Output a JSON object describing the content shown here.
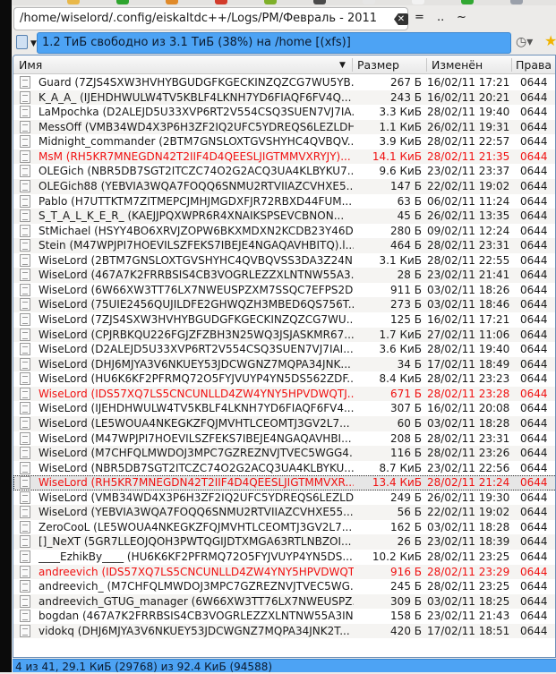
{
  "toolbar": {
    "icon_colors": [
      "#e9b84a",
      "#2fa52f",
      "#e08a2a",
      "#d23b2b",
      "#7fb02a",
      "#4a4a4a",
      "#e6e6e6",
      "#f2f2f2",
      "#32a832",
      "#9aa0aa"
    ]
  },
  "path": {
    "value": "/home/wiselord/.config/eiskaltdc++/Logs/PM/Февраль - 2011",
    "root_btn": "=",
    "up_btn": "..",
    "home_btn": "~"
  },
  "free_space": {
    "text": "1.2 ТиБ свободно из 3.1 ТиБ (38%) на /home [(xfs)]"
  },
  "columns": {
    "name": "Имя",
    "size": "Размер",
    "modified": "Изменён",
    "perms": "Права"
  },
  "colors": {
    "highlight": "#f01010",
    "accent": "#4da3f4"
  },
  "rows": [
    {
      "name": "Guard (7ZJS4SXW3HVHYBGUDGFKGECKINZQZCG7WU5YB...",
      "size": "267 Б",
      "date": "16/02/11 17:21",
      "perms": "0644"
    },
    {
      "name": "K_A_A_ (IJEHDHWULW4TV5KBLF4LKNH7YD6FIAQF6FV4Q...",
      "size": "243 Б",
      "date": "16/02/11 20:21",
      "perms": "0644"
    },
    {
      "name": "LaMpochka (D2ALEJD5U33XVP6RT2V554CSQ3SUEN7VJ7IA...",
      "size": "3.3 КиБ",
      "date": "28/02/11 19:40",
      "perms": "0644"
    },
    {
      "name": "MessOff (VMB34WD4X3P6H3ZF2IQ2UFC5YDREQS6LEZLDH...",
      "size": "1.1 КиБ",
      "date": "26/02/11 19:31",
      "perms": "0644"
    },
    {
      "name": "Midnight_commander (2BTM7GNSLOXTGVSHYHC4QVBQV...",
      "size": "3.9 КиБ",
      "date": "28/02/11 22:57",
      "perms": "0644"
    },
    {
      "name": "MsM (RH5KR7MNEGDN42T2IIF4D4QEESLJIGTMMVXRYJY)...",
      "size": "14.1 КиБ",
      "date": "28/02/11 21:35",
      "perms": "0644",
      "red": true
    },
    {
      "name": "OLEGich (NBR5DB7SGT2ITCZC74O2G2ACQ3UA4KLBYKU7...",
      "size": "9.6 КиБ",
      "date": "23/02/11 23:37",
      "perms": "0644"
    },
    {
      "name": "OLEGich88 (YEBVIA3WQA7FOQQ6SNMU2RTVIIAZCVHXE5...",
      "size": "147 Б",
      "date": "22/02/11 19:02",
      "perms": "0644"
    },
    {
      "name": "Pablo (H7UTTKTM7ZITMEPCJMHJMGDXFJR72RBXD44FUM...",
      "size": "63 Б",
      "date": "06/02/11 11:24",
      "perms": "0644"
    },
    {
      "name": "S_T_A_L_K_E_R_ (KAEJJPQXWPR6R4XNAIKSPSEVCBNON...",
      "size": "45 Б",
      "date": "26/02/11 13:35",
      "perms": "0644"
    },
    {
      "name": "StMichael (HSYY4BO6XRVJZOPW6BKXMDXN2KCDB23Y46D...",
      "size": "280 Б",
      "date": "09/02/11 12:24",
      "perms": "0644"
    },
    {
      "name": "Stein (M47WPJPI7HOEVILSZFEKS7IBEJE4NGAQAVHBITQ).l...",
      "size": "464 Б",
      "date": "28/02/11 23:31",
      "perms": "0644"
    },
    {
      "name": "WiseLord (2BTM7GNSLOXTGVSHYHC4QVBQVSS3DA3Z24N...",
      "size": "3.1 КиБ",
      "date": "28/02/11 22:55",
      "perms": "0644"
    },
    {
      "name": "WiseLord (467A7K2FRRBSIS4CB3VOGRLEZZXLNTNW55A3...",
      "size": "28 Б",
      "date": "23/02/11 21:41",
      "perms": "0644"
    },
    {
      "name": "WiseLord (6W66XW3TT76LX7NWEUSPZXM7SSQC7EFPS2D...",
      "size": "911 Б",
      "date": "03/02/11 18:26",
      "perms": "0644"
    },
    {
      "name": "WiseLord (75UIE2456QUJILDFE2GHWQZH3MBED6QS756T...",
      "size": "273 Б",
      "date": "03/02/11 18:46",
      "perms": "0644"
    },
    {
      "name": "WiseLord (7ZJS4SXW3HVHYBGUDGFKGECKINZQZCG7WU...",
      "size": "125 Б",
      "date": "16/02/11 17:21",
      "perms": "0644"
    },
    {
      "name": "WiseLord (CPJRBKQU226FGJZFZBH3N25WQ3JSJASKMR67...",
      "size": "1.7 КиБ",
      "date": "27/02/11 11:06",
      "perms": "0644"
    },
    {
      "name": "WiseLord (D2ALEJD5U33XVP6RT2V554CSQ3SUEN7VJ7IAI...",
      "size": "3.6 КиБ",
      "date": "28/02/11 19:40",
      "perms": "0644"
    },
    {
      "name": "WiseLord (DHJ6MJYA3V6NKUEY53JDCWGNZ7MQPA34JNK...",
      "size": "34 Б",
      "date": "17/02/11 18:49",
      "perms": "0644"
    },
    {
      "name": "WiseLord (HU6K6KF2PFRMQ72O5FYJVUYP4YN5DS562ZDF...",
      "size": "8.4 КиБ",
      "date": "28/02/11 23:23",
      "perms": "0644"
    },
    {
      "name": "WiseLord (IDS57XQ7LS5CNCUNLLD4ZW4YNY5HPVDWQTJ...",
      "size": "671 Б",
      "date": "28/02/11 23:28",
      "perms": "0644",
      "red": true
    },
    {
      "name": "WiseLord (IJEHDHWULW4TV5KBLF4LKNH7YD6FIAQF6FV4...",
      "size": "307 Б",
      "date": "16/02/11 20:08",
      "perms": "0644"
    },
    {
      "name": "WiseLord (LE5WOUA4NKEGKZFQJMVHTLCEOMTJ3GV2L7...",
      "size": "60 Б",
      "date": "03/02/11 18:28",
      "perms": "0644"
    },
    {
      "name": "WiseLord (M47WPJPI7HOEVILSZFEKS7IBEJE4NGAQAVHBI...",
      "size": "208 Б",
      "date": "28/02/11 23:31",
      "perms": "0644"
    },
    {
      "name": "WiseLord (M7CHFQLMWDOJ3MPC7GZREZNVJTVEC5WGG4...",
      "size": "116 Б",
      "date": "28/02/11 23:26",
      "perms": "0644"
    },
    {
      "name": "WiseLord (NBR5DB7SGT2ITCZC74O2G2ACQ3UA4KLBYKU...",
      "size": "8.7 КиБ",
      "date": "23/02/11 22:56",
      "perms": "0644"
    },
    {
      "name": "WiseLord (RH5KR7MNEGDN42T2IIF4D4QEESLJIGTMMVXR...",
      "size": "13.4 КиБ",
      "date": "28/02/11 21:24",
      "perms": "0644",
      "red": true,
      "selected": true
    },
    {
      "name": "WiseLord (VMB34WD4X3P6H3ZF2IQ2UFC5YDREQS6LEZLD...",
      "size": "249 Б",
      "date": "26/02/11 19:30",
      "perms": "0644"
    },
    {
      "name": "WiseLord (YEBVIA3WQA7FOQQ6SNMU2RTVIIAZCVHXE55...",
      "size": "56 Б",
      "date": "22/02/11 19:02",
      "perms": "0644"
    },
    {
      "name": "ZeroCooL (LE5WOUA4NKEGKZFQJMVHTLCEOMTJ3GV2L7...",
      "size": "162 Б",
      "date": "03/02/11 18:28",
      "perms": "0644"
    },
    {
      "name": "[]_NeXT (5GR7LLEOJQOH3PWTQGIJDTXMGA63RTLNBZOI...",
      "size": "26 Б",
      "date": "23/02/11 18:39",
      "perms": "0644"
    },
    {
      "name": "____EzhikBy____ (HU6K6KF2PFRMQ72O5FYJVUYP4YN5DS...",
      "size": "10.2 КиБ",
      "date": "28/02/11 23:25",
      "perms": "0644"
    },
    {
      "name": "andreevich (IDS57XQ7LS5CNCUNLLD4ZW4YNY5HPVDWQT...",
      "size": "916 Б",
      "date": "28/02/11 23:29",
      "perms": "0644",
      "red": true
    },
    {
      "name": "andreevich_ (M7CHFQLMWDOJ3MPC7GZREZNVJTVEC5WG...",
      "size": "245 Б",
      "date": "28/02/11 23:25",
      "perms": "0644"
    },
    {
      "name": "andreevich_GTUG_manager (6W66XW3TT76LX7NWEUSPZ...",
      "size": "309 Б",
      "date": "03/02/11 18:25",
      "perms": "0644"
    },
    {
      "name": "bogdan (467A7K2FRRBSIS4CB3VOGRLEZZXLNTNW55A3IN...",
      "size": "158 Б",
      "date": "23/02/11 21:43",
      "perms": "0644"
    },
    {
      "name": "vidokq (DHJ6MJYA3V6NKUEY53JDCWGNZ7MQPA34JNK2T...",
      "size": "420 Б",
      "date": "17/02/11 18:51",
      "perms": "0644"
    }
  ],
  "status": {
    "text": "4 из 41, 29.1 КиБ (29768) из 92.4 КиБ (94588)"
  }
}
